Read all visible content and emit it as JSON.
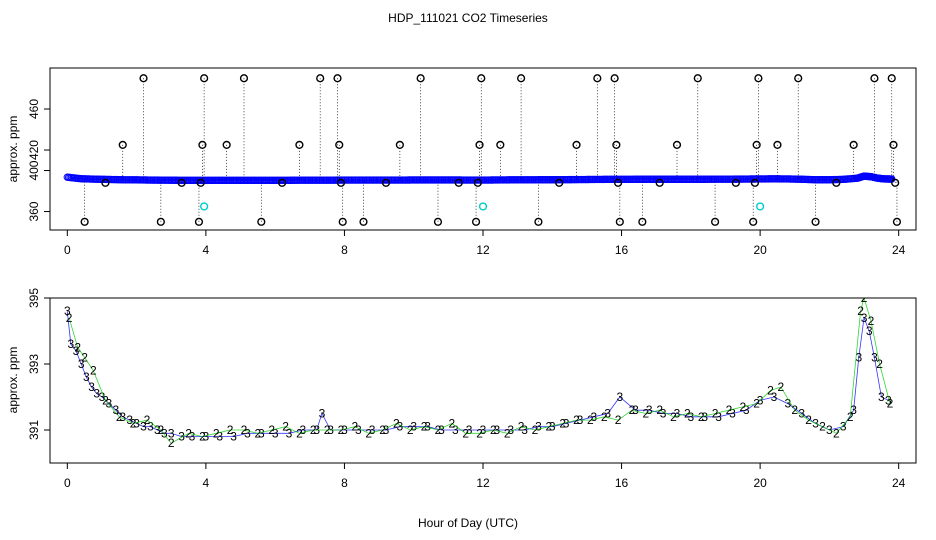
{
  "figure": {
    "title": "HDP_111021  CO2 Timeseries",
    "xlabel": "Hour of Day (UTC)"
  },
  "colors": {
    "axis": "#000000",
    "series_blue": "#0000ff",
    "series_cyan": "#00cccc",
    "series_green": "#00cc00",
    "outlier": "#000000"
  },
  "chart_data": [
    {
      "type": "scatter",
      "panel": "top",
      "title": "",
      "xlabel": "",
      "ylabel": "approx. ppm",
      "xlim": [
        -0.5,
        24.5
      ],
      "ylim": [
        342,
        500
      ],
      "xticks": [
        0,
        4,
        8,
        12,
        16,
        20,
        24
      ],
      "yticks": [
        360,
        400,
        420,
        460
      ],
      "series": [
        {
          "name": "co2_blue",
          "marker": "o",
          "color": "#0000ff",
          "x": [
            0.0,
            0.4,
            0.8,
            1.2,
            1.6,
            2.0,
            2.4,
            2.8,
            3.2,
            3.6,
            4.0,
            4.4,
            4.8,
            5.2,
            5.6,
            6.0,
            6.4,
            6.8,
            7.2,
            7.6,
            8.0,
            8.4,
            8.8,
            9.2,
            9.6,
            10.0,
            10.4,
            10.8,
            11.2,
            11.6,
            12.0,
            12.4,
            12.8,
            13.2,
            13.6,
            14.0,
            14.4,
            14.8,
            15.2,
            15.6,
            16.0,
            16.4,
            16.8,
            17.2,
            17.6,
            18.0,
            18.4,
            18.8,
            19.2,
            19.6,
            20.0,
            20.4,
            20.8,
            21.2,
            21.6,
            22.0,
            22.4,
            22.8,
            23.0,
            23.2,
            23.4,
            23.6,
            23.8
          ],
          "y": [
            393.5,
            392.0,
            391.6,
            391.3,
            391.0,
            390.9,
            390.7,
            390.6,
            390.5,
            390.5,
            390.4,
            390.5,
            390.5,
            390.5,
            390.5,
            390.5,
            390.5,
            390.6,
            390.6,
            390.6,
            390.7,
            390.7,
            390.7,
            390.7,
            390.7,
            390.8,
            390.8,
            390.8,
            390.8,
            390.7,
            390.7,
            390.8,
            390.9,
            390.9,
            391.0,
            391.0,
            391.1,
            391.2,
            391.3,
            391.4,
            391.4,
            391.5,
            391.5,
            391.5,
            391.5,
            391.5,
            391.5,
            391.6,
            391.6,
            391.7,
            391.8,
            391.9,
            391.8,
            391.5,
            391.0,
            391.0,
            391.4,
            392.5,
            394.5,
            394.0,
            392.5,
            391.8,
            391.7
          ]
        },
        {
          "name": "co2_cyan",
          "marker": "o",
          "color": "#00cccc",
          "x": [
            3.95,
            12.0,
            20.0
          ],
          "y": [
            365,
            365,
            365
          ]
        },
        {
          "name": "outliers",
          "marker": "o",
          "color": "#000000",
          "x": [
            0.5,
            1.1,
            1.6,
            2.2,
            2.7,
            3.3,
            3.8,
            3.85,
            3.9,
            3.95,
            4.6,
            5.1,
            5.6,
            6.2,
            6.7,
            7.3,
            7.8,
            7.85,
            7.9,
            7.95,
            8.55,
            9.2,
            9.6,
            10.2,
            10.7,
            11.3,
            11.8,
            11.85,
            11.9,
            11.95,
            12.5,
            13.1,
            13.6,
            14.2,
            14.7,
            15.3,
            15.8,
            15.85,
            15.9,
            15.95,
            16.6,
            17.1,
            17.6,
            18.2,
            18.7,
            19.3,
            19.8,
            19.85,
            19.9,
            19.95,
            20.5,
            21.1,
            21.6,
            22.2,
            22.7,
            23.3,
            23.8,
            23.85,
            23.9,
            23.95
          ],
          "y": [
            350,
            388,
            425,
            490,
            350,
            388,
            350,
            388,
            425,
            490,
            425,
            490,
            350,
            388,
            425,
            490,
            490,
            425,
            388,
            350,
            350,
            388,
            425,
            490,
            350,
            388,
            350,
            388,
            425,
            490,
            425,
            490,
            350,
            388,
            425,
            490,
            490,
            425,
            388,
            350,
            350,
            388,
            425,
            490,
            350,
            388,
            350,
            388,
            425,
            490,
            425,
            490,
            350,
            388,
            425,
            490,
            490,
            425,
            388,
            350
          ]
        }
      ]
    },
    {
      "type": "scatter",
      "panel": "bottom",
      "title": "",
      "xlabel": "Hour of Day (UTC)",
      "ylabel": "approx. ppm",
      "xlim": [
        -0.5,
        24.5
      ],
      "ylim": [
        390.0,
        395.0
      ],
      "xticks": [
        0,
        4,
        8,
        12,
        16,
        20,
        24
      ],
      "yticks": [
        391,
        393,
        395
      ],
      "series": [
        {
          "name": "series_3",
          "marker": "3",
          "color": "#0000ff",
          "x": [
            0.0,
            0.1,
            0.25,
            0.4,
            0.55,
            0.7,
            0.85,
            1.0,
            1.2,
            1.4,
            1.6,
            1.8,
            2.0,
            2.2,
            2.4,
            2.6,
            2.8,
            3.0,
            3.3,
            3.6,
            4.0,
            4.4,
            4.8,
            5.2,
            5.6,
            6.0,
            6.4,
            6.8,
            7.2,
            7.35,
            7.6,
            8.0,
            8.4,
            8.8,
            9.2,
            9.6,
            10.0,
            10.4,
            10.8,
            11.2,
            11.6,
            12.0,
            12.4,
            12.8,
            13.2,
            13.6,
            14.0,
            14.4,
            14.8,
            15.2,
            15.6,
            15.95,
            16.4,
            16.8,
            17.2,
            17.6,
            18.0,
            18.4,
            18.8,
            19.2,
            19.6,
            20.0,
            20.4,
            20.8,
            21.2,
            21.6,
            22.0,
            22.4,
            22.7,
            22.85,
            23.0,
            23.15,
            23.3,
            23.5,
            23.7
          ],
          "y": [
            394.6,
            393.6,
            393.4,
            393.0,
            392.6,
            392.3,
            392.1,
            392.0,
            391.8,
            391.6,
            391.4,
            391.3,
            391.2,
            391.1,
            391.1,
            391.0,
            390.9,
            390.9,
            390.8,
            390.8,
            390.8,
            390.8,
            390.8,
            390.9,
            390.9,
            390.9,
            390.9,
            391.0,
            391.0,
            391.5,
            391.0,
            391.0,
            391.0,
            391.0,
            391.0,
            391.1,
            391.1,
            391.1,
            391.0,
            391.0,
            391.0,
            391.0,
            391.0,
            391.0,
            391.0,
            391.1,
            391.1,
            391.2,
            391.3,
            391.4,
            391.5,
            392.0,
            391.6,
            391.6,
            391.5,
            391.5,
            391.4,
            391.4,
            391.4,
            391.5,
            391.6,
            391.9,
            392.0,
            391.8,
            391.5,
            391.2,
            391.0,
            391.1,
            391.6,
            393.2,
            394.4,
            394.0,
            393.2,
            392.0,
            391.9
          ]
        },
        {
          "name": "series_2",
          "marker": "2",
          "color": "#00cc00",
          "x": [
            0.05,
            0.3,
            0.5,
            0.75,
            1.1,
            1.5,
            1.9,
            2.3,
            2.7,
            3.0,
            3.5,
            3.9,
            4.3,
            4.7,
            5.1,
            5.5,
            5.9,
            6.3,
            6.7,
            7.1,
            7.5,
            7.9,
            8.3,
            8.7,
            9.1,
            9.5,
            9.9,
            10.3,
            10.7,
            11.1,
            11.5,
            11.9,
            12.3,
            12.7,
            13.1,
            13.5,
            13.9,
            14.3,
            14.7,
            15.1,
            15.5,
            15.9,
            16.3,
            16.7,
            17.1,
            17.5,
            17.9,
            18.3,
            18.7,
            19.1,
            19.5,
            19.9,
            20.3,
            20.6,
            21.0,
            21.4,
            21.8,
            22.2,
            22.6,
            22.9,
            23.0,
            23.2,
            23.45,
            23.75
          ],
          "y": [
            394.4,
            393.5,
            393.2,
            392.8,
            391.9,
            391.4,
            391.2,
            391.3,
            391.0,
            390.6,
            390.9,
            390.8,
            390.9,
            391.0,
            391.0,
            390.9,
            391.0,
            391.1,
            390.9,
            391.0,
            391.0,
            391.0,
            391.1,
            390.9,
            391.0,
            391.2,
            391.0,
            391.1,
            391.0,
            391.2,
            390.9,
            390.9,
            391.0,
            390.9,
            391.1,
            391.0,
            391.1,
            391.2,
            391.3,
            391.3,
            391.4,
            391.3,
            391.6,
            391.5,
            391.6,
            391.4,
            391.5,
            391.4,
            391.5,
            391.6,
            391.7,
            391.8,
            392.2,
            392.3,
            391.6,
            391.3,
            391.1,
            390.9,
            391.4,
            394.6,
            395.0,
            394.3,
            393.0,
            391.8
          ]
        }
      ]
    }
  ]
}
